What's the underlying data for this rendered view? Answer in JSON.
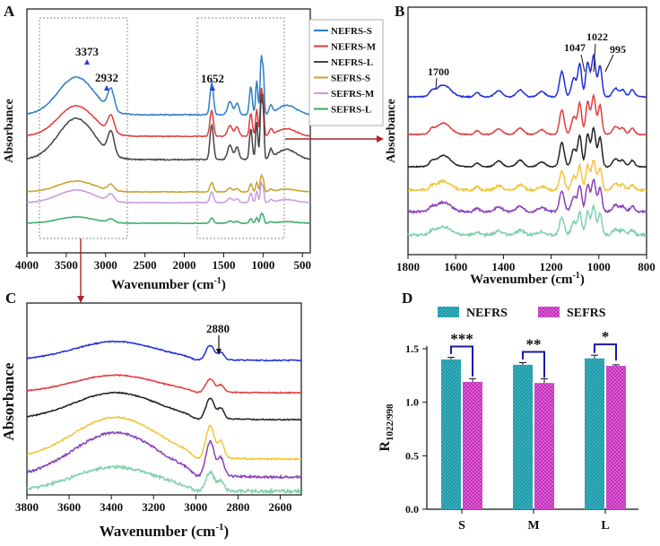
{
  "chart_data": [
    {
      "panel_label": "A",
      "type": "line",
      "xlabel_main": "Wavenumber (cm",
      "xlabel_sup": "-1",
      "xlabel_end": ")",
      "ylabel": "Absorbance",
      "xlim": [
        4000,
        400
      ],
      "xticks": [
        4000,
        3500,
        3000,
        2500,
        2000,
        1500,
        1000,
        500
      ],
      "legend_position": "top-right",
      "series": [
        {
          "name": "NEFRS-S",
          "color": "#2e7ec8",
          "peaks": [
            3373,
            2932,
            1652,
            1022
          ]
        },
        {
          "name": "NEFRS-M",
          "color": "#e03c3c"
        },
        {
          "name": "NEFRS-L",
          "color": "#444444"
        },
        {
          "name": "SEFRS-S",
          "color": "#c9a227"
        },
        {
          "name": "SEFRS-M",
          "color": "#c79be0"
        },
        {
          "name": "SEFRS-L",
          "color": "#3aaa68"
        }
      ],
      "annotations": [
        "3373",
        "2932",
        "1652"
      ],
      "boxes": [
        [
          3700,
          2700
        ],
        [
          1800,
          700
        ]
      ]
    },
    {
      "panel_label": "B",
      "type": "line",
      "xlabel_main": "Wavenumber (cm",
      "xlabel_sup": "-1",
      "xlabel_end": ")",
      "ylabel": "Absorbance",
      "xlim": [
        1800,
        800
      ],
      "xticks": [
        1800,
        1600,
        1400,
        1200,
        1000,
        800
      ],
      "series_colors": [
        "#1f2fd6",
        "#e03c3c",
        "#222222",
        "#f2c53a",
        "#8a3fb8",
        "#7fd0a8"
      ],
      "annotations": [
        "1700",
        "1047",
        "1022",
        "995"
      ]
    },
    {
      "panel_label": "C",
      "type": "line",
      "xlabel_main": "Wavenumber (cm",
      "xlabel_sup": "-1",
      "xlabel_end": ")",
      "ylabel": "Absorbance",
      "xlim": [
        3800,
        2500
      ],
      "xticks": [
        3800,
        3600,
        3400,
        3200,
        3000,
        2800,
        2600
      ],
      "series_colors": [
        "#1f2fd6",
        "#e03c3c",
        "#222222",
        "#f2c53a",
        "#8a3fb8",
        "#7fd0a8"
      ],
      "annotations": [
        "2880"
      ]
    },
    {
      "panel_label": "D",
      "type": "bar",
      "ylabel_main": "R",
      "ylabel_sub": "1022/998",
      "categories": [
        "S",
        "M",
        "L"
      ],
      "ylim": [
        0.0,
        1.5
      ],
      "yticks": [
        "0.0",
        "0.5",
        "1.0",
        "1.5"
      ],
      "series": [
        {
          "name": "NEFRS",
          "color": "#1f9aa8",
          "values": [
            1.4,
            1.35,
            1.41
          ],
          "errors": [
            0.02,
            0.02,
            0.03
          ]
        },
        {
          "name": "SEFRS",
          "color": "#b61fae",
          "values": [
            1.19,
            1.18,
            1.34
          ],
          "errors": [
            0.03,
            0.04,
            0.01
          ]
        }
      ],
      "significance": [
        "***",
        "**",
        "*"
      ],
      "legend_position": "top"
    }
  ]
}
